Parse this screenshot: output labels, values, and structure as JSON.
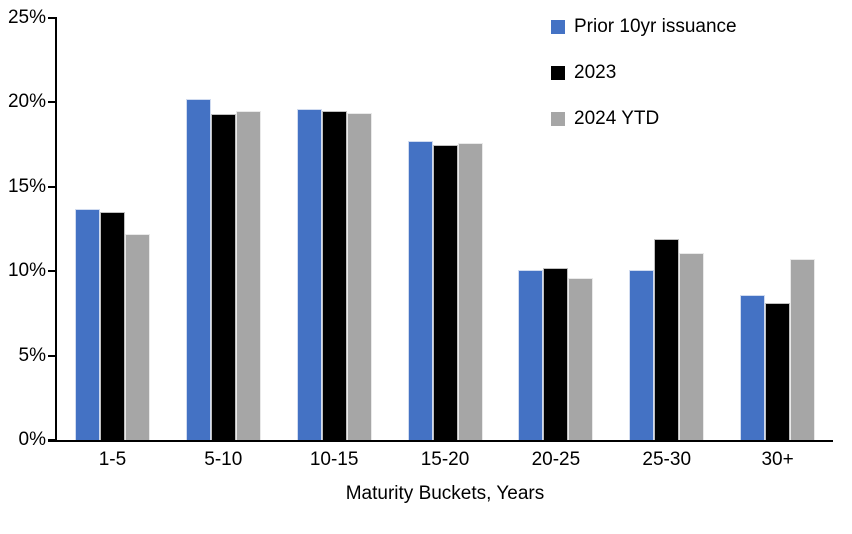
{
  "chart_data": {
    "type": "bar",
    "title": "",
    "categories": [
      "1-5",
      "5-10",
      "10-15",
      "15-20",
      "20-25",
      "25-30",
      "30+"
    ],
    "series": [
      {
        "name": "Prior 10yr issuance",
        "color": "#4472C4",
        "values": [
          13.7,
          20.2,
          19.6,
          17.7,
          10.1,
          10.1,
          8.6
        ]
      },
      {
        "name": "2023",
        "color": "#000000",
        "values": [
          13.5,
          19.3,
          19.5,
          17.5,
          10.2,
          11.9,
          8.1
        ]
      },
      {
        "name": "2024 YTD",
        "color": "#A6A6A6",
        "values": [
          12.2,
          19.5,
          19.4,
          17.6,
          9.6,
          11.1,
          10.7
        ]
      }
    ],
    "xlabel": "Maturity Buckets, Years",
    "ylabel": "",
    "ylim": [
      0,
      25
    ],
    "yticks": [
      {
        "value": 0,
        "label": "0%"
      },
      {
        "value": 5,
        "label": "5%"
      },
      {
        "value": 10,
        "label": "10%"
      },
      {
        "value": 15,
        "label": "15%"
      },
      {
        "value": 20,
        "label": "20%"
      },
      {
        "value": 25,
        "label": "25%"
      }
    ],
    "grid": false,
    "legend_position": "top-right",
    "background": "#FFFFFF"
  }
}
